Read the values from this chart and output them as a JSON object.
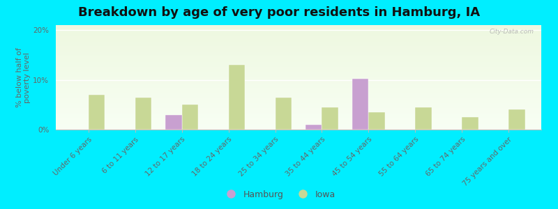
{
  "title": "Breakdown by age of very poor residents in Hamburg, IA",
  "ylabel": "% below half of\npoverty level",
  "categories": [
    "Under 6 years",
    "6 to 11 years",
    "12 to 17 years",
    "18 to 24 years",
    "25 to 34 years",
    "35 to 44 years",
    "45 to 54 years",
    "55 to 64 years",
    "65 to 74 years",
    "75 years and over"
  ],
  "hamburg_values": [
    0,
    0,
    3.0,
    0,
    0,
    1.0,
    10.2,
    0,
    0,
    0
  ],
  "iowa_values": [
    7.0,
    6.5,
    5.0,
    13.0,
    6.5,
    4.5,
    3.5,
    4.5,
    2.5,
    4.0
  ],
  "hamburg_color": "#c8a0d0",
  "iowa_color": "#c8d896",
  "background_color": "#00eeff",
  "ylim": [
    0,
    21
  ],
  "yticks": [
    0,
    10,
    20
  ],
  "ytick_labels": [
    "0%",
    "10%",
    "20%"
  ],
  "bar_width": 0.35,
  "legend_hamburg": "Hamburg",
  "legend_iowa": "Iowa",
  "title_fontsize": 13,
  "axis_label_fontsize": 8,
  "tick_label_fontsize": 7.5,
  "watermark": "City-Data.com"
}
